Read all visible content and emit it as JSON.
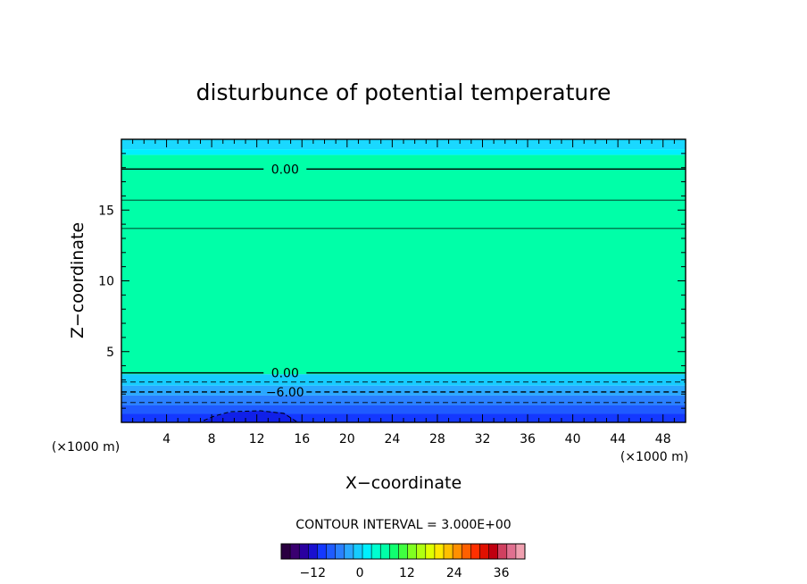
{
  "chart_data": {
    "type": "heatmap",
    "title": "disturbunce of potential temperature",
    "xlabel": "X−coordinate",
    "ylabel": "Z−coordinate",
    "x_unit": "(×1000 m)",
    "z_unit": "(×1000 m)",
    "xlim": [
      0,
      50
    ],
    "ylim": [
      0,
      20
    ],
    "x_ticks": [
      4,
      8,
      12,
      16,
      20,
      24,
      28,
      32,
      36,
      40,
      44,
      48
    ],
    "x_tick_labels": [
      "4",
      "8",
      "12",
      "16",
      "20",
      "24",
      "28",
      "32",
      "36",
      "40",
      "44",
      "48"
    ],
    "y_ticks": [
      5,
      10,
      15
    ],
    "y_tick_labels": [
      "5",
      "10",
      "15"
    ],
    "bands": [
      {
        "z0": 0.0,
        "z1": 0.6,
        "color": "#1438ff"
      },
      {
        "z0": 0.6,
        "z1": 1.2,
        "color": "#1f5bff"
      },
      {
        "z0": 1.2,
        "z1": 1.9,
        "color": "#2a80ff"
      },
      {
        "z0": 1.9,
        "z1": 2.6,
        "color": "#2aa8ff"
      },
      {
        "z0": 2.6,
        "z1": 3.4,
        "color": "#16ccff"
      },
      {
        "z0": 3.4,
        "z1": 18.9,
        "color": "#00ffa8"
      },
      {
        "z0": 18.9,
        "z1": 19.3,
        "color": "#00f0ff"
      },
      {
        "z0": 19.3,
        "z1": 20.0,
        "color": "#1ad8ff"
      }
    ],
    "contours": [
      {
        "z": 17.9,
        "style": "solid",
        "width": 1.4,
        "label": "0.00",
        "label_x": 14.5
      },
      {
        "z": 15.7,
        "style": "solid",
        "width": 0.8
      },
      {
        "z": 13.7,
        "style": "solid",
        "width": 0.8
      },
      {
        "z": 3.5,
        "style": "solid",
        "width": 1.4,
        "label": "0.00",
        "label_x": 14.5
      },
      {
        "z": 2.85,
        "style": "dashed",
        "width": 0.8
      },
      {
        "z": 2.15,
        "style": "dashed",
        "width": 1.4,
        "label": "−6.00",
        "label_x": 14.5
      },
      {
        "z": 1.4,
        "style": "dashed",
        "width": 0.8
      }
    ],
    "contour_interval_text": "CONTOUR INTERVAL = 3.000E+00",
    "colorbar": {
      "min": -20,
      "max": 42,
      "ticks": [
        -12,
        0,
        12,
        24,
        36
      ],
      "tick_labels": [
        "−12",
        "0",
        "12",
        "24",
        "36"
      ],
      "colors": [
        "#2a0040",
        "#3a0070",
        "#2a00a0",
        "#1a10d0",
        "#1438ff",
        "#1f5bff",
        "#2a80ff",
        "#2aa8ff",
        "#16ccff",
        "#00f0ff",
        "#00ffd0",
        "#00ffa8",
        "#10ff70",
        "#40ff40",
        "#80ff20",
        "#b0ff10",
        "#e0ff00",
        "#ffe800",
        "#ffc000",
        "#ff9000",
        "#ff6000",
        "#ff3000",
        "#e01000",
        "#c00010",
        "#d04060",
        "#e07090",
        "#f0a0b0"
      ]
    }
  }
}
